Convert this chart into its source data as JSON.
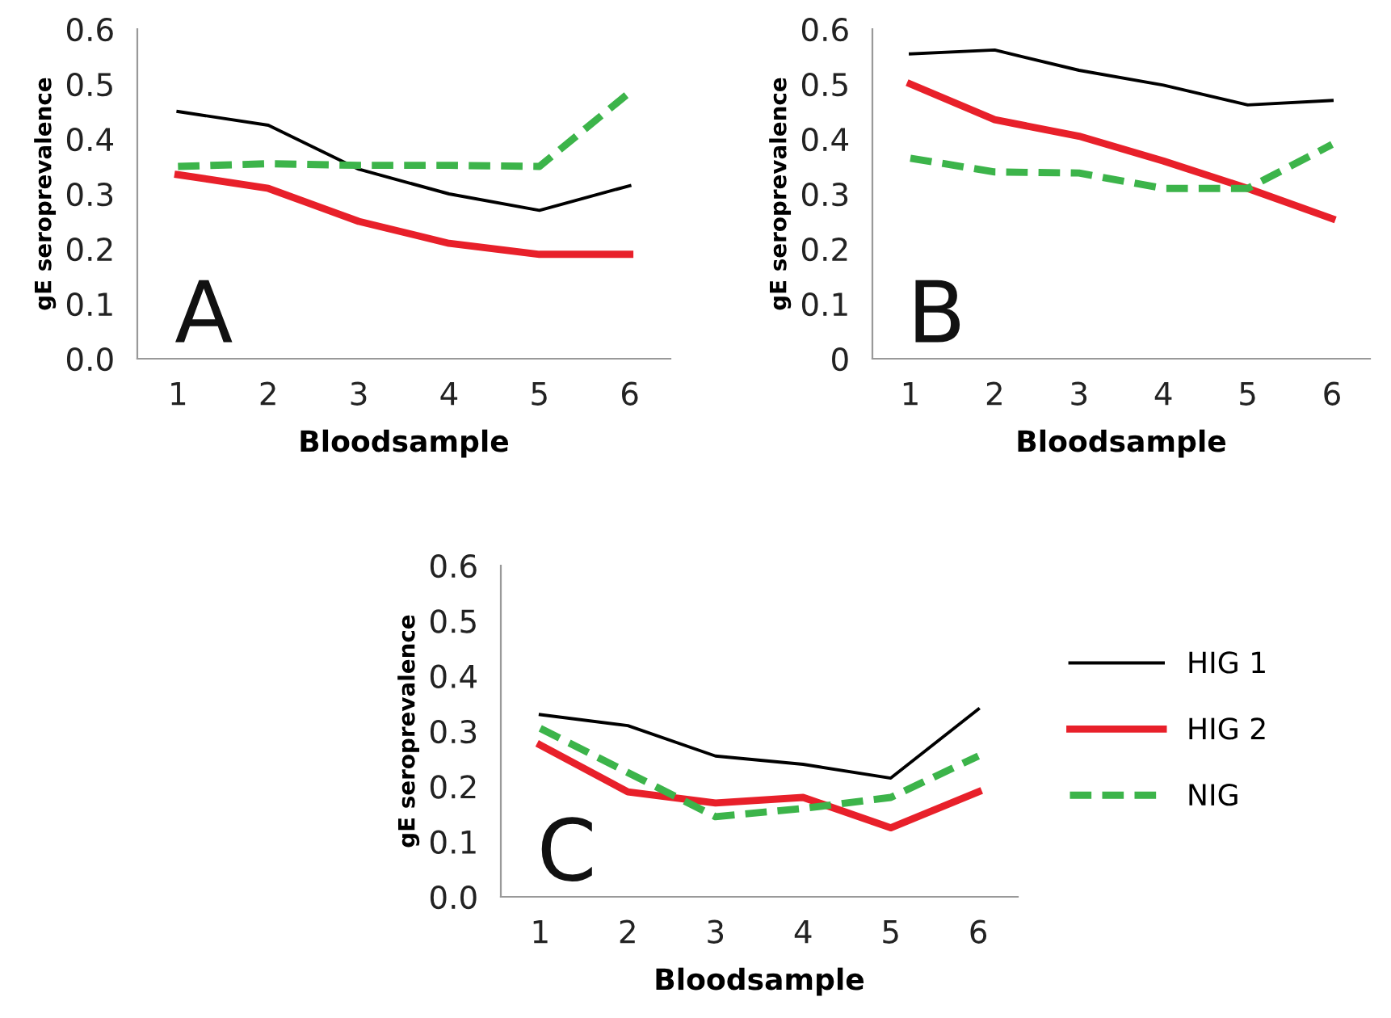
{
  "chart_data": [
    {
      "type": "line",
      "categories": [
        "1",
        "2",
        "3",
        "4",
        "5",
        "6"
      ],
      "xlabel": "Bloodsample",
      "ylabel": "gE seroprevalence",
      "ylim": [
        0,
        0.6
      ],
      "yticks": [
        {
          "value": 0,
          "label": "0.0"
        },
        0.1,
        0.2,
        0.3,
        0.4,
        0.5,
        0.6
      ],
      "annotations": [
        "A"
      ],
      "grid": false,
      "legend": false,
      "series": [
        {
          "color": "#000000",
          "line_style": "solid",
          "values": [
            0.45,
            0.425,
            0.345,
            0.3,
            0.27,
            0.315
          ]
        },
        {
          "color": "#e8202a",
          "line_style": "solid",
          "values": [
            0.335,
            0.31,
            0.25,
            0.21,
            0.19,
            0.19
          ]
        },
        {
          "color": "#3cb44a",
          "line_style": "dashed",
          "values": [
            0.35,
            0.355,
            0.352,
            0.352,
            0.35,
            0.485
          ]
        }
      ]
    },
    {
      "type": "line",
      "categories": [
        "1",
        "2",
        "3",
        "4",
        "5",
        "6"
      ],
      "xlabel": "Bloodsample",
      "ylabel": "gE seroprevalence",
      "ylim": [
        0,
        0.6
      ],
      "yticks": [
        0,
        0.1,
        0.2,
        0.3,
        0.4,
        0.5,
        0.6
      ],
      "annotations": [
        "B"
      ],
      "grid": false,
      "legend": false,
      "series": [
        {
          "color": "#000000",
          "line_style": "solid",
          "values": [
            0.555,
            0.562,
            0.525,
            0.498,
            0.462,
            0.47
          ]
        },
        {
          "color": "#e8202a",
          "line_style": "solid",
          "values": [
            0.5,
            0.435,
            0.405,
            0.36,
            0.31,
            0.255
          ]
        },
        {
          "color": "#3cb44a",
          "line_style": "dashed",
          "values": [
            0.365,
            0.34,
            0.338,
            0.31,
            0.31,
            0.39
          ]
        }
      ]
    },
    {
      "type": "line",
      "categories": [
        "1",
        "2",
        "3",
        "4",
        "5",
        "6"
      ],
      "xlabel": "Bloodsample",
      "ylabel": "gE seroprevalence",
      "ylim": [
        0,
        0.6
      ],
      "yticks": [
        {
          "value": 0,
          "label": "0.0"
        },
        0.1,
        0.2,
        0.3,
        0.4,
        0.5,
        0.6
      ],
      "annotations": [
        "C"
      ],
      "grid": false,
      "legend": "right",
      "series": [
        {
          "name": "HIG 1",
          "color": "#000000",
          "line_style": "solid",
          "values": [
            0.33,
            0.31,
            0.255,
            0.24,
            0.215,
            0.34
          ]
        },
        {
          "name": "HIG 2",
          "color": "#e8202a",
          "line_style": "solid",
          "values": [
            0.275,
            0.19,
            0.17,
            0.18,
            0.125,
            0.19
          ]
        },
        {
          "name": "NIG",
          "color": "#3cb44a",
          "line_style": "dashed",
          "values": [
            0.305,
            0.225,
            0.145,
            0.16,
            0.18,
            0.255
          ]
        }
      ]
    }
  ]
}
